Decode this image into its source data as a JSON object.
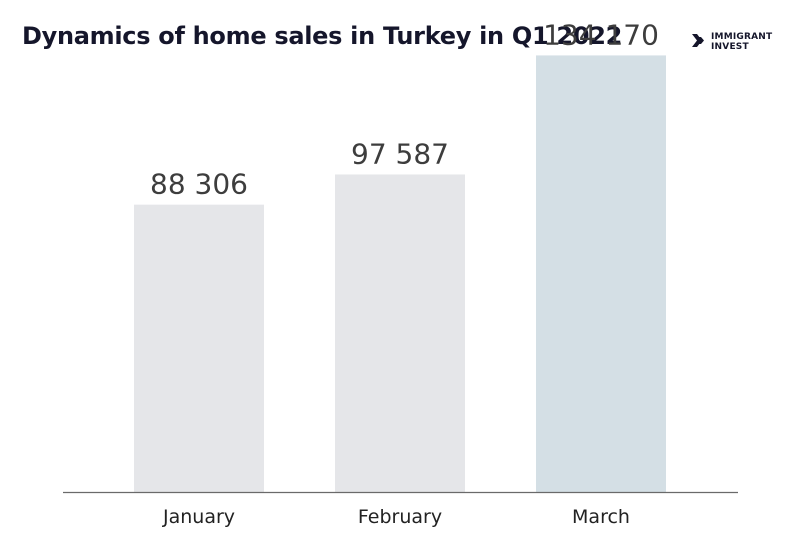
{
  "title": "Dynamics of home sales in Turkey in Q1 2022",
  "brand": {
    "line1": "IMMIGRANT",
    "line2": "INVEST"
  },
  "colors": {
    "bar_default": "#e5e6e9",
    "bar_highlight": "#d4dfe5",
    "axis": "#6a6a6a",
    "title": "#15162b",
    "value_label": "#3d3d3d",
    "category_label": "#222222"
  },
  "chart_data": {
    "type": "bar",
    "title": "Dynamics of home sales in Turkey in Q1 2022",
    "xlabel": "",
    "ylabel": "",
    "categories": [
      "January",
      "February",
      "March"
    ],
    "values": [
      88306,
      97587,
      134170
    ],
    "value_labels": [
      "88 306",
      "97 587",
      "134 170"
    ],
    "highlight_index": 2,
    "ylim": [
      0,
      151200
    ],
    "grid": false,
    "legend": "none"
  }
}
